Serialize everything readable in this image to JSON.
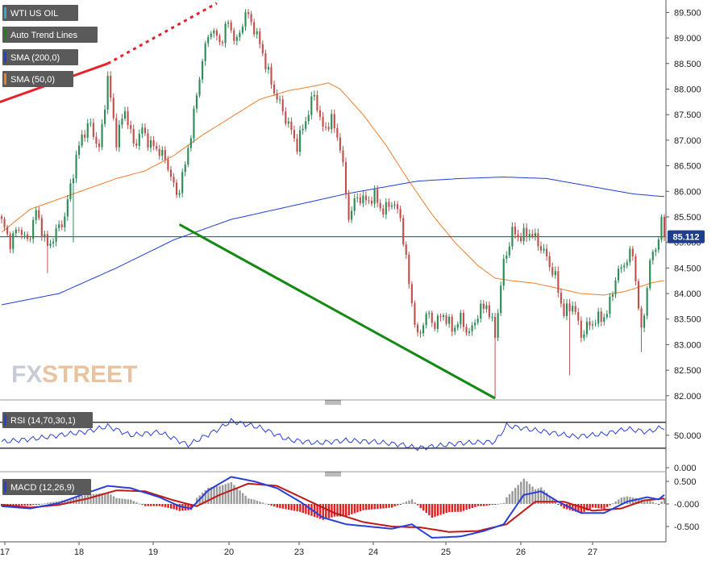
{
  "legend": {
    "symbol": "WTI US OIL",
    "trend": "Auto Trend Lines",
    "sma200": "SMA (200,0)",
    "sma50": "SMA (50,0)",
    "rsi": "RSI (14,70,30,1)",
    "macd": "MACD (12,26,9)",
    "price_tag": "85.112"
  },
  "watermark": {
    "fx": "FX",
    "street": "STREET"
  },
  "colors": {
    "up": "#2e8b57",
    "down": "#c0504d",
    "sma200": "#1f3fd6",
    "sma50": "#f07d2a",
    "rsi": "#2a3fd8",
    "macd": "#2a3fd8",
    "signal": "#c01818",
    "hist_pos": "#9a9a9a",
    "hist_neg": "#e02020",
    "trend_up": "#e8202a",
    "trend_down": "#138a13",
    "price_tag_bg": "#1f3f8a"
  },
  "chart_data": {
    "type": "candlestick",
    "x_ticks": [
      "17",
      "18",
      "19",
      "20",
      "23",
      "24",
      "25",
      "26",
      "27"
    ],
    "y_ticks": [
      "89.500",
      "89.000",
      "88.500",
      "88.000",
      "87.500",
      "87.000",
      "86.500",
      "86.000",
      "85.500",
      "85.000",
      "84.500",
      "84.000",
      "83.500",
      "83.000",
      "82.500",
      "82.000"
    ],
    "ylim": [
      81.95,
      89.68
    ],
    "last_price": 85.112,
    "anchors": [
      [
        0,
        85.4
      ],
      [
        3,
        85.0
      ],
      [
        6,
        85.3
      ],
      [
        9,
        85.0
      ],
      [
        12,
        85.6
      ],
      [
        16,
        84.9
      ],
      [
        19,
        85.2
      ],
      [
        22,
        85.5
      ],
      [
        25,
        86.4
      ],
      [
        28,
        87.1
      ],
      [
        31,
        87.3
      ],
      [
        34,
        86.8
      ],
      [
        37,
        88.2
      ],
      [
        40,
        87.0
      ],
      [
        43,
        87.6
      ],
      [
        46,
        86.9
      ],
      [
        49,
        87.2
      ],
      [
        52,
        86.9
      ],
      [
        55,
        86.8
      ],
      [
        58,
        86.5
      ],
      [
        61,
        85.9
      ],
      [
        64,
        86.5
      ],
      [
        67,
        87.5
      ],
      [
        70,
        88.6
      ],
      [
        73,
        89.2
      ],
      [
        76,
        88.9
      ],
      [
        79,
        89.3
      ],
      [
        82,
        88.9
      ],
      [
        85,
        89.5
      ],
      [
        88,
        89.2
      ],
      [
        91,
        88.7
      ],
      [
        94,
        88.1
      ],
      [
        97,
        87.7
      ],
      [
        100,
        87.3
      ],
      [
        103,
        86.9
      ],
      [
        106,
        87.4
      ],
      [
        109,
        87.9
      ],
      [
        112,
        87.2
      ],
      [
        115,
        87.4
      ],
      [
        118,
        86.9
      ],
      [
        121,
        85.5
      ],
      [
        124,
        85.9
      ],
      [
        127,
        85.8
      ],
      [
        130,
        85.9
      ],
      [
        133,
        85.6
      ],
      [
        136,
        85.8
      ],
      [
        139,
        85.5
      ],
      [
        142,
        84.2
      ],
      [
        145,
        83.1
      ],
      [
        148,
        83.6
      ],
      [
        151,
        83.4
      ],
      [
        154,
        83.6
      ],
      [
        157,
        83.3
      ],
      [
        160,
        83.5
      ],
      [
        163,
        83.2
      ],
      [
        166,
        83.6
      ],
      [
        169,
        83.8
      ],
      [
        172,
        83.2
      ],
      [
        175,
        84.6
      ],
      [
        178,
        85.2
      ],
      [
        181,
        85.1
      ],
      [
        184,
        85.2
      ],
      [
        187,
        85.0
      ],
      [
        190,
        84.7
      ],
      [
        193,
        84.3
      ],
      [
        196,
        83.6
      ],
      [
        199,
        83.8
      ],
      [
        202,
        83.2
      ],
      [
        205,
        83.4
      ],
      [
        208,
        83.5
      ],
      [
        211,
        83.6
      ],
      [
        214,
        84.3
      ],
      [
        217,
        84.6
      ],
      [
        220,
        84.8
      ],
      [
        223,
        83.2
      ],
      [
        226,
        84.6
      ],
      [
        229,
        85.1
      ]
    ],
    "sma50_anchors": [
      [
        0,
        85.2
      ],
      [
        10,
        85.65
      ],
      [
        20,
        85.85
      ],
      [
        30,
        86.05
      ],
      [
        40,
        86.25
      ],
      [
        50,
        86.4
      ],
      [
        60,
        86.7
      ],
      [
        70,
        87.1
      ],
      [
        80,
        87.45
      ],
      [
        90,
        87.8
      ],
      [
        100,
        87.97
      ],
      [
        108,
        88.05
      ],
      [
        114,
        88.12
      ],
      [
        118,
        88.0
      ],
      [
        126,
        87.5
      ],
      [
        134,
        86.9
      ],
      [
        142,
        86.2
      ],
      [
        150,
        85.55
      ],
      [
        158,
        85.0
      ],
      [
        166,
        84.55
      ],
      [
        172,
        84.3
      ],
      [
        178,
        84.25
      ],
      [
        186,
        84.2
      ],
      [
        194,
        84.1
      ],
      [
        202,
        84.0
      ],
      [
        210,
        83.97
      ],
      [
        218,
        84.05
      ],
      [
        226,
        84.2
      ],
      [
        230,
        84.25
      ]
    ],
    "sma200_anchors": [
      [
        0,
        83.78
      ],
      [
        20,
        84.0
      ],
      [
        40,
        84.5
      ],
      [
        60,
        85.05
      ],
      [
        80,
        85.45
      ],
      [
        100,
        85.7
      ],
      [
        120,
        85.95
      ],
      [
        135,
        86.1
      ],
      [
        145,
        86.2
      ],
      [
        160,
        86.25
      ],
      [
        175,
        86.28
      ],
      [
        190,
        86.25
      ],
      [
        205,
        86.1
      ],
      [
        220,
        85.95
      ],
      [
        230,
        85.9
      ]
    ],
    "trend_lines": [
      {
        "name": "resistance",
        "start": [
          -8,
          87.6
        ],
        "end": [
          37,
          88.5
        ],
        "extend_to": [
          75,
          89.68
        ]
      },
      {
        "name": "support",
        "start": [
          62,
          85.35
        ],
        "end": [
          172,
          81.95
        ]
      }
    ],
    "rsi": {
      "levels": [
        70,
        30
      ],
      "ticks": [
        "50.000",
        "0.000"
      ],
      "anchors": [
        [
          0,
          40
        ],
        [
          10,
          44
        ],
        [
          20,
          50
        ],
        [
          30,
          56
        ],
        [
          37,
          64
        ],
        [
          45,
          50
        ],
        [
          55,
          55
        ],
        [
          65,
          35
        ],
        [
          75,
          58
        ],
        [
          80,
          72
        ],
        [
          90,
          62
        ],
        [
          100,
          43
        ],
        [
          110,
          38
        ],
        [
          120,
          42
        ],
        [
          130,
          40
        ],
        [
          140,
          35
        ],
        [
          145,
          30
        ],
        [
          160,
          38
        ],
        [
          172,
          40
        ],
        [
          176,
          65
        ],
        [
          190,
          55
        ],
        [
          200,
          48
        ],
        [
          210,
          52
        ],
        [
          218,
          60
        ],
        [
          225,
          55
        ],
        [
          230,
          62
        ]
      ]
    },
    "macd": {
      "ticks": [
        "0.500",
        "-0.000",
        "-0.500"
      ],
      "macd_anchors": [
        [
          0,
          -0.05
        ],
        [
          10,
          -0.1
        ],
        [
          20,
          0.02
        ],
        [
          30,
          0.25
        ],
        [
          37,
          0.4
        ],
        [
          45,
          0.35
        ],
        [
          55,
          0.15
        ],
        [
          62,
          -0.05
        ],
        [
          66,
          -0.1
        ],
        [
          72,
          0.3
        ],
        [
          80,
          0.6
        ],
        [
          88,
          0.5
        ],
        [
          96,
          0.35
        ],
        [
          104,
          0.05
        ],
        [
          112,
          -0.3
        ],
        [
          120,
          -0.45
        ],
        [
          128,
          -0.5
        ],
        [
          136,
          -0.55
        ],
        [
          143,
          -0.45
        ],
        [
          150,
          -0.75
        ],
        [
          160,
          -0.72
        ],
        [
          168,
          -0.6
        ],
        [
          175,
          -0.45
        ],
        [
          182,
          0.2
        ],
        [
          188,
          0.28
        ],
        [
          194,
          0.05
        ],
        [
          202,
          -0.2
        ],
        [
          210,
          -0.2
        ],
        [
          218,
          0.05
        ],
        [
          225,
          0.15
        ],
        [
          229,
          0.1
        ],
        [
          231,
          0.2
        ]
      ],
      "signal_anchors": [
        [
          0,
          -0.02
        ],
        [
          10,
          -0.08
        ],
        [
          20,
          -0.02
        ],
        [
          30,
          0.12
        ],
        [
          40,
          0.3
        ],
        [
          50,
          0.28
        ],
        [
          60,
          0.08
        ],
        [
          68,
          -0.05
        ],
        [
          76,
          0.2
        ],
        [
          86,
          0.45
        ],
        [
          96,
          0.4
        ],
        [
          106,
          0.1
        ],
        [
          116,
          -0.2
        ],
        [
          126,
          -0.4
        ],
        [
          136,
          -0.5
        ],
        [
          146,
          -0.52
        ],
        [
          156,
          -0.62
        ],
        [
          166,
          -0.6
        ],
        [
          176,
          -0.45
        ],
        [
          186,
          0.05
        ],
        [
          196,
          0.05
        ],
        [
          206,
          -0.15
        ],
        [
          216,
          -0.1
        ],
        [
          224,
          0.08
        ],
        [
          231,
          0.12
        ]
      ]
    }
  }
}
